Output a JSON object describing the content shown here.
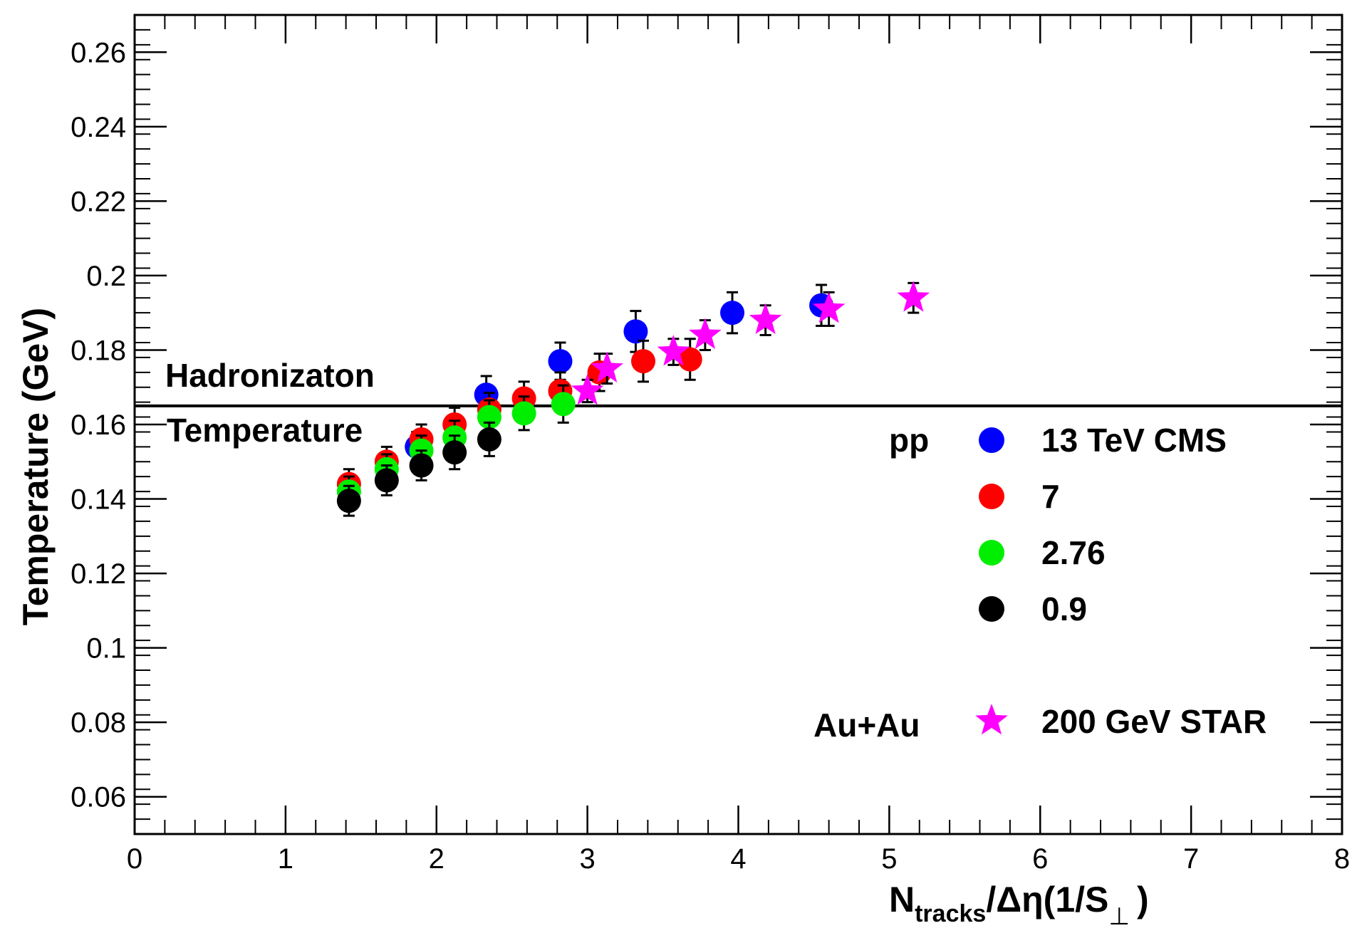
{
  "chart_data": {
    "type": "scatter",
    "xlabel": {
      "main": "N",
      "sub": "tracks",
      "rest": "/Δη(1/S",
      "perp": "⊥",
      "close": ")"
    },
    "ylabel": "Temperature (GeV)",
    "xlim": [
      0,
      8
    ],
    "ylim": [
      0.05,
      0.27
    ],
    "x_major_ticks": [
      0,
      1,
      2,
      3,
      4,
      5,
      6,
      7,
      8
    ],
    "x_tick_labels": [
      "0",
      "1",
      "2",
      "3",
      "4",
      "5",
      "6",
      "7",
      "8"
    ],
    "y_major_ticks": [
      0.06,
      0.08,
      0.1,
      0.12,
      0.14,
      0.16,
      0.18,
      0.2,
      0.22,
      0.24,
      0.26
    ],
    "y_tick_labels": [
      "0.06",
      "0.08",
      "0.1",
      "0.12",
      "0.14",
      "0.16",
      "0.18",
      "0.2",
      "0.22",
      "0.24",
      "0.26"
    ],
    "x_minor_step": 0.2,
    "y_minor_step": 0.004,
    "hline": {
      "y": 0.165,
      "label_top": "Hadronizaton",
      "label_bottom": "Temperature"
    },
    "legend": {
      "pp_group": "pp",
      "auau_group": "Au+Au",
      "entries": [
        {
          "series": 0,
          "label": "13 TeV CMS"
        },
        {
          "series": 1,
          "label": "7"
        },
        {
          "series": 2,
          "label": "2.76"
        },
        {
          "series": 3,
          "label": "0.9"
        },
        {
          "series": 4,
          "label": "200 GeV STAR"
        }
      ]
    },
    "series": [
      {
        "name": "13 TeV CMS",
        "color": "#0000ff",
        "marker": "circle",
        "points": [
          {
            "x": 1.87,
            "y": 0.154,
            "err": 0.004
          },
          {
            "x": 2.33,
            "y": 0.168,
            "err": 0.005
          },
          {
            "x": 2.82,
            "y": 0.177,
            "err": 0.005
          },
          {
            "x": 3.32,
            "y": 0.185,
            "err": 0.0055
          },
          {
            "x": 3.96,
            "y": 0.19,
            "err": 0.0055
          },
          {
            "x": 4.55,
            "y": 0.192,
            "err": 0.0055
          }
        ]
      },
      {
        "name": "7",
        "color": "#ff0000",
        "marker": "circle",
        "points": [
          {
            "x": 1.42,
            "y": 0.144,
            "err": 0.004
          },
          {
            "x": 1.67,
            "y": 0.15,
            "err": 0.004
          },
          {
            "x": 1.9,
            "y": 0.156,
            "err": 0.004
          },
          {
            "x": 2.12,
            "y": 0.16,
            "err": 0.0045
          },
          {
            "x": 2.35,
            "y": 0.164,
            "err": 0.0045
          },
          {
            "x": 2.58,
            "y": 0.167,
            "err": 0.0045
          },
          {
            "x": 2.82,
            "y": 0.169,
            "err": 0.005
          },
          {
            "x": 3.08,
            "y": 0.174,
            "err": 0.005
          },
          {
            "x": 3.37,
            "y": 0.177,
            "err": 0.0055
          },
          {
            "x": 3.68,
            "y": 0.1775,
            "err": 0.0055
          }
        ]
      },
      {
        "name": "2.76",
        "color": "#00ee00",
        "marker": "circle",
        "points": [
          {
            "x": 1.42,
            "y": 0.142,
            "err": 0.004
          },
          {
            "x": 1.67,
            "y": 0.148,
            "err": 0.004
          },
          {
            "x": 1.9,
            "y": 0.153,
            "err": 0.004
          },
          {
            "x": 2.12,
            "y": 0.1565,
            "err": 0.0045
          },
          {
            "x": 2.35,
            "y": 0.162,
            "err": 0.0045
          },
          {
            "x": 2.58,
            "y": 0.163,
            "err": 0.0045
          },
          {
            "x": 2.84,
            "y": 0.1655,
            "err": 0.005
          }
        ]
      },
      {
        "name": "0.9",
        "color": "#000000",
        "marker": "circle",
        "points": [
          {
            "x": 1.42,
            "y": 0.1395,
            "err": 0.004
          },
          {
            "x": 1.67,
            "y": 0.145,
            "err": 0.004
          },
          {
            "x": 1.9,
            "y": 0.149,
            "err": 0.004
          },
          {
            "x": 2.12,
            "y": 0.1525,
            "err": 0.0045
          },
          {
            "x": 2.35,
            "y": 0.156,
            "err": 0.0045
          }
        ]
      },
      {
        "name": "200 GeV STAR",
        "color": "#ff00ff",
        "marker": "star",
        "points": [
          {
            "x": 3.0,
            "y": 0.169,
            "err": 0.003
          },
          {
            "x": 3.13,
            "y": 0.175,
            "err": 0.004
          },
          {
            "x": 3.57,
            "y": 0.1795,
            "err": 0.0035
          },
          {
            "x": 3.78,
            "y": 0.184,
            "err": 0.004
          },
          {
            "x": 4.18,
            "y": 0.188,
            "err": 0.004
          },
          {
            "x": 4.6,
            "y": 0.191,
            "err": 0.0045
          },
          {
            "x": 5.16,
            "y": 0.194,
            "err": 0.004
          }
        ]
      }
    ]
  }
}
